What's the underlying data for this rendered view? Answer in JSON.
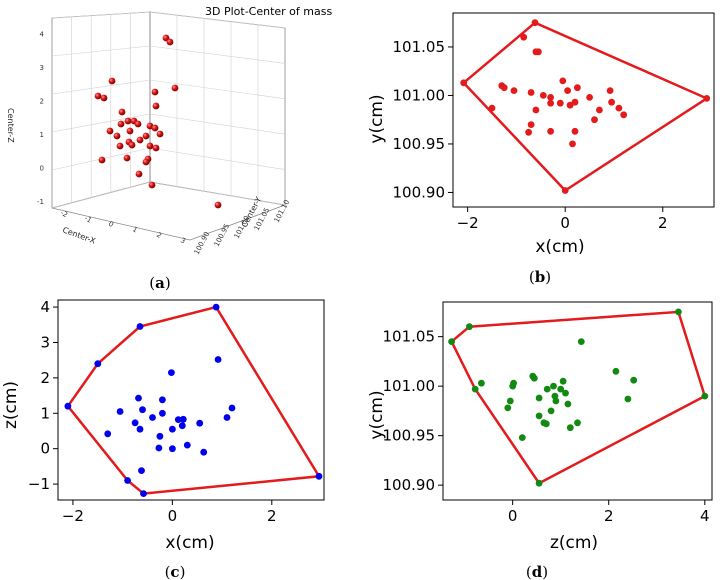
{
  "chart_data": [
    {
      "id": "a",
      "type": "scatter3d",
      "title": "3D Plot-Center of mass",
      "caption": "a",
      "xlabel": "Center-X",
      "ylabel": "Center-Y",
      "zlabel": "Center-Z",
      "x_ticks": [
        "-2",
        "-1",
        "0",
        "1",
        "2",
        "3"
      ],
      "y_ticks": [
        "100.90",
        "100.95",
        "101.00",
        "101.05",
        "101.10"
      ],
      "z_ticks": [
        "-1",
        "0",
        "1",
        "2",
        "3",
        "4"
      ],
      "point_color": "#d41010"
    },
    {
      "id": "b",
      "type": "scatter",
      "caption": "b",
      "xlabel": "x(cm)",
      "ylabel": "y(cm)",
      "xlim": [
        -2.3,
        3.05
      ],
      "ylim": [
        100.885,
        101.085
      ],
      "x_ticks": [
        -2,
        0,
        2
      ],
      "x_tick_labels": [
        "−2",
        "0",
        "2"
      ],
      "y_ticks": [
        100.9,
        100.95,
        101.0,
        101.05
      ],
      "y_tick_labels": [
        "100.90",
        "100.95",
        "101.00",
        "101.05"
      ],
      "point_color": "#e41a1c",
      "hull_color": "#e41a1c",
      "points": [
        [
          -2.08,
          101.013
        ],
        [
          -0.62,
          101.075
        ],
        [
          -0.85,
          101.06
        ],
        [
          -0.6,
          101.045
        ],
        [
          -0.55,
          101.045
        ],
        [
          -1.3,
          101.01
        ],
        [
          -1.25,
          101.008
        ],
        [
          -1.05,
          101.005
        ],
        [
          -1.5,
          100.987
        ],
        [
          -0.7,
          101.003
        ],
        [
          -0.45,
          101.0
        ],
        [
          -0.3,
          100.998
        ],
        [
          -0.05,
          101.015
        ],
        [
          0.05,
          101.005
        ],
        [
          0.25,
          101.008
        ],
        [
          0.2,
          100.993
        ],
        [
          0.1,
          100.99
        ],
        [
          -0.1,
          100.992
        ],
        [
          -0.3,
          100.992
        ],
        [
          -0.6,
          100.985
        ],
        [
          -0.7,
          100.97
        ],
        [
          -0.75,
          100.962
        ],
        [
          -0.3,
          100.963
        ],
        [
          0.2,
          100.963
        ],
        [
          0.15,
          100.95
        ],
        [
          0.6,
          100.975
        ],
        [
          0.7,
          100.985
        ],
        [
          0.95,
          100.993
        ],
        [
          1.1,
          100.987
        ],
        [
          1.2,
          100.98
        ],
        [
          0.92,
          101.005
        ],
        [
          0.5,
          100.998
        ],
        [
          0.0,
          100.902
        ],
        [
          2.9,
          100.997
        ]
      ],
      "hull": [
        [
          -2.08,
          101.013
        ],
        [
          -0.62,
          101.075
        ],
        [
          2.9,
          100.997
        ],
        [
          0.0,
          100.902
        ]
      ]
    },
    {
      "id": "c",
      "type": "scatter",
      "caption": "c",
      "xlabel": "x(cm)",
      "ylabel": "z(cm)",
      "xlim": [
        -2.3,
        3.05
      ],
      "ylim": [
        -1.45,
        4.2
      ],
      "x_ticks": [
        -2,
        0,
        2
      ],
      "x_tick_labels": [
        "−2",
        "0",
        "2"
      ],
      "y_ticks": [
        -1,
        0,
        1,
        2,
        3,
        4
      ],
      "y_tick_labels": [
        "−1",
        "0",
        "1",
        "2",
        "3",
        "4"
      ],
      "point_color": "#0000ee",
      "hull_color": "#e41a1c",
      "points": [
        [
          -2.1,
          1.2
        ],
        [
          -1.5,
          2.4
        ],
        [
          -0.65,
          3.45
        ],
        [
          0.88,
          4.0
        ],
        [
          2.95,
          -0.78
        ],
        [
          -0.58,
          -1.27
        ],
        [
          -0.9,
          -0.9
        ],
        [
          0.92,
          2.52
        ],
        [
          -0.02,
          2.15
        ],
        [
          -1.3,
          0.42
        ],
        [
          -1.05,
          1.05
        ],
        [
          -0.75,
          0.73
        ],
        [
          -0.68,
          1.43
        ],
        [
          -0.6,
          1.1
        ],
        [
          -0.65,
          0.55
        ],
        [
          -0.4,
          0.88
        ],
        [
          -0.2,
          1.38
        ],
        [
          -0.25,
          0.35
        ],
        [
          -0.2,
          1.0
        ],
        [
          0.0,
          0.55
        ],
        [
          0.12,
          0.82
        ],
        [
          0.22,
          0.83
        ],
        [
          0.2,
          0.65
        ],
        [
          0.3,
          0.1
        ],
        [
          -0.27,
          0.02
        ],
        [
          0.0,
          0.0
        ],
        [
          0.55,
          0.72
        ],
        [
          0.63,
          -0.1
        ],
        [
          1.1,
          0.88
        ],
        [
          1.2,
          1.15
        ],
        [
          -0.62,
          -0.62
        ]
      ],
      "hull": [
        [
          -2.1,
          1.2
        ],
        [
          -1.5,
          2.4
        ],
        [
          -0.65,
          3.45
        ],
        [
          0.88,
          4.0
        ],
        [
          2.95,
          -0.78
        ],
        [
          -0.58,
          -1.27
        ],
        [
          -0.9,
          -0.9
        ]
      ]
    },
    {
      "id": "d",
      "type": "scatter",
      "caption": "d",
      "xlabel": "z(cm)",
      "ylabel": "y(cm)",
      "xlim": [
        -1.45,
        4.15
      ],
      "ylim": [
        100.885,
        101.085
      ],
      "x_ticks": [
        0,
        2,
        4
      ],
      "x_tick_labels": [
        "0",
        "2",
        "4"
      ],
      "y_ticks": [
        100.9,
        100.95,
        101.0,
        101.05
      ],
      "y_tick_labels": [
        "100.90",
        "100.95",
        "101.00",
        "101.05"
      ],
      "point_color": "#128a12",
      "hull_color": "#e41a1c",
      "points": [
        [
          -1.27,
          101.045
        ],
        [
          -0.9,
          101.06
        ],
        [
          3.45,
          101.075
        ],
        [
          4.0,
          100.99
        ],
        [
          0.55,
          100.902
        ],
        [
          -0.78,
          100.997
        ],
        [
          -0.65,
          101.003
        ],
        [
          0.02,
          101.003
        ],
        [
          0.0,
          101.0
        ],
        [
          -0.05,
          100.985
        ],
        [
          -0.1,
          100.978
        ],
        [
          0.2,
          100.948
        ],
        [
          0.42,
          101.01
        ],
        [
          0.45,
          101.008
        ],
        [
          0.55,
          100.988
        ],
        [
          0.55,
          100.97
        ],
        [
          0.65,
          100.963
        ],
        [
          0.7,
          100.962
        ],
        [
          0.72,
          100.997
        ],
        [
          0.8,
          100.975
        ],
        [
          0.85,
          101.0
        ],
        [
          0.88,
          100.99
        ],
        [
          0.9,
          100.985
        ],
        [
          1.0,
          100.997
        ],
        [
          1.05,
          101.005
        ],
        [
          1.1,
          100.993
        ],
        [
          1.15,
          100.982
        ],
        [
          1.2,
          100.958
        ],
        [
          1.35,
          100.963
        ],
        [
          1.43,
          101.045
        ],
        [
          2.15,
          101.015
        ],
        [
          2.4,
          100.987
        ],
        [
          2.52,
          101.006
        ]
      ],
      "hull": [
        [
          -1.27,
          101.045
        ],
        [
          -0.9,
          101.06
        ],
        [
          3.45,
          101.075
        ],
        [
          4.0,
          100.99
        ],
        [
          0.55,
          100.902
        ],
        [
          -0.78,
          100.997
        ]
      ]
    }
  ]
}
